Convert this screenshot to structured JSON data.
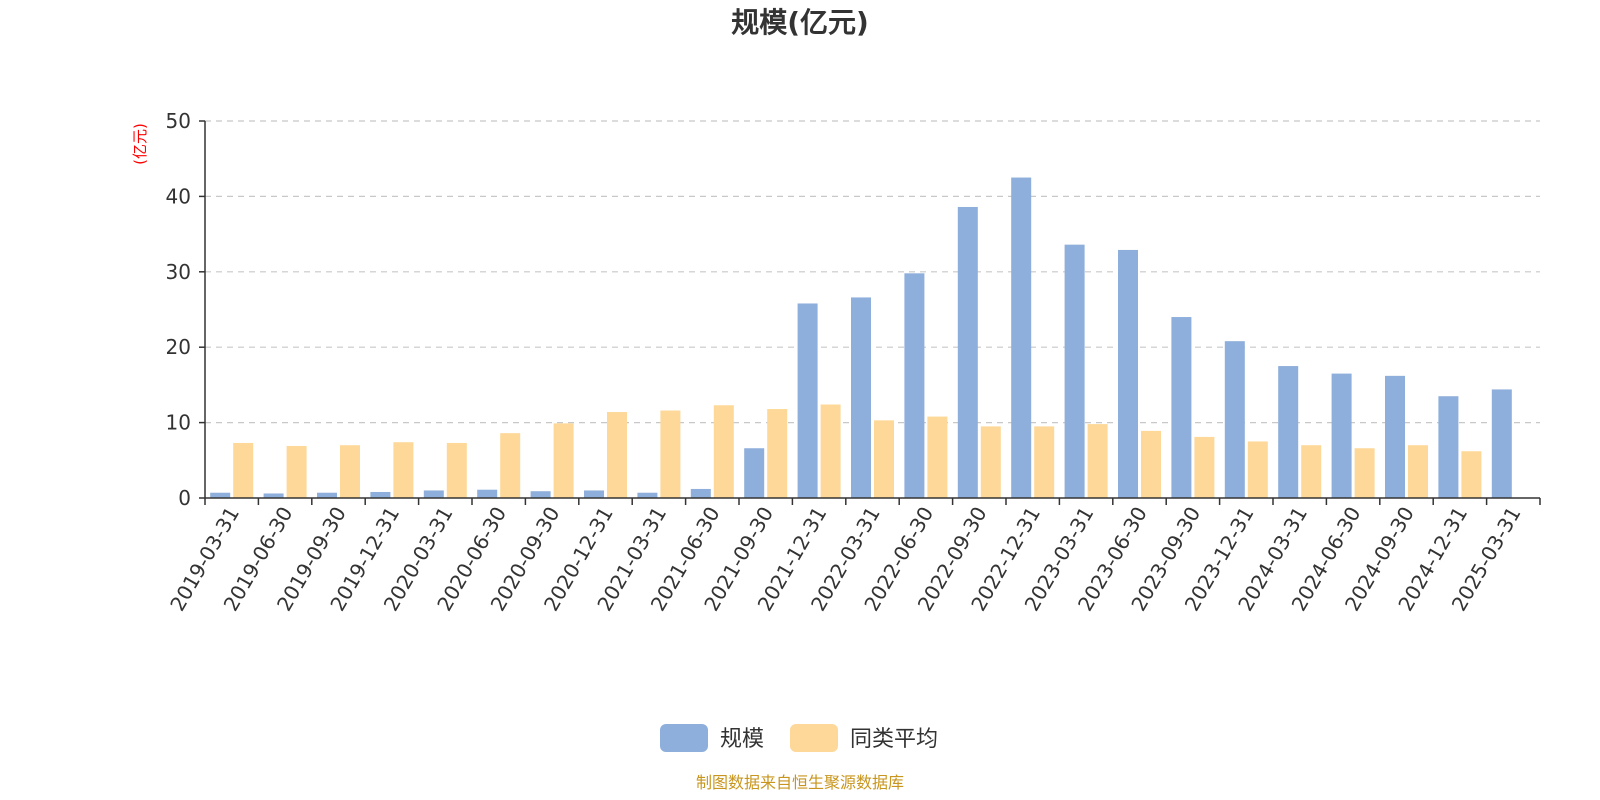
{
  "chart_data": {
    "type": "bar",
    "title": "规模(亿元)",
    "ylabel": "(亿元)",
    "xlabel": "",
    "ylim": [
      0,
      50
    ],
    "yticks": [
      0,
      10,
      20,
      30,
      40,
      50
    ],
    "grid": true,
    "legend_position": "bottom-center",
    "categories": [
      "2019-03-31",
      "2019-06-30",
      "2019-09-30",
      "2019-12-31",
      "2020-03-31",
      "2020-06-30",
      "2020-09-30",
      "2020-12-31",
      "2021-03-31",
      "2021-06-30",
      "2021-09-30",
      "2021-12-31",
      "2022-03-31",
      "2022-06-30",
      "2022-09-30",
      "2022-12-31",
      "2023-03-31",
      "2023-06-30",
      "2023-09-30",
      "2023-12-31",
      "2024-03-31",
      "2024-06-30",
      "2024-09-30",
      "2024-12-31",
      "2025-03-31"
    ],
    "series": [
      {
        "name": "规模",
        "color": "#8eaedb",
        "values": [
          0.7,
          0.6,
          0.7,
          0.8,
          1.0,
          1.1,
          0.9,
          1.0,
          0.7,
          1.2,
          6.6,
          25.8,
          26.6,
          29.8,
          38.6,
          42.5,
          33.6,
          32.9,
          24.0,
          20.8,
          17.5,
          16.5,
          16.2,
          13.5,
          14.4
        ]
      },
      {
        "name": "同类平均",
        "color": "#fdd898",
        "values": [
          7.3,
          6.9,
          7.0,
          7.4,
          7.3,
          8.6,
          9.9,
          11.4,
          11.6,
          12.3,
          11.8,
          12.4,
          10.3,
          10.8,
          9.5,
          9.5,
          9.8,
          8.9,
          8.1,
          7.5,
          7.0,
          6.6,
          7.0,
          6.2,
          null
        ]
      }
    ]
  },
  "source_note": "制图数据来自恒生聚源数据库"
}
